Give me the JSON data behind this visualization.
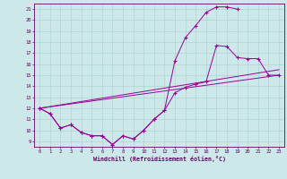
{
  "xlabel": "Windchill (Refroidissement éolien,°C)",
  "bg_color": "#cce8e8",
  "line_color": "#990099",
  "grid_color": "#aacccc",
  "axis_color": "#660066",
  "tick_color": "#660066",
  "xlim": [
    -0.5,
    23.5
  ],
  "ylim": [
    8.5,
    21.5
  ],
  "xticks": [
    0,
    1,
    2,
    3,
    4,
    5,
    6,
    7,
    8,
    9,
    10,
    11,
    12,
    13,
    14,
    15,
    16,
    17,
    18,
    19,
    20,
    21,
    22,
    23
  ],
  "yticks": [
    9,
    10,
    11,
    12,
    13,
    14,
    15,
    16,
    17,
    18,
    19,
    20,
    21
  ],
  "curve1_x": [
    0,
    1,
    2,
    3,
    4,
    5,
    6,
    7,
    8,
    9,
    10,
    11,
    12,
    13,
    14,
    15,
    16,
    17,
    18,
    19
  ],
  "curve1_y": [
    12.0,
    11.5,
    10.2,
    10.5,
    9.8,
    9.5,
    9.5,
    8.7,
    9.5,
    9.2,
    10.0,
    11.0,
    11.8,
    16.3,
    18.4,
    19.5,
    20.7,
    21.2,
    21.2,
    21.0
  ],
  "curve2_x": [
    0,
    1,
    2,
    3,
    4,
    5,
    6,
    7,
    8,
    9,
    10,
    11,
    12,
    13,
    14,
    15,
    16,
    17,
    18,
    19,
    20,
    21,
    22,
    23
  ],
  "curve2_y": [
    12.0,
    11.5,
    10.2,
    10.5,
    9.8,
    9.5,
    9.5,
    8.7,
    9.5,
    9.2,
    10.0,
    11.0,
    11.8,
    13.4,
    13.9,
    14.2,
    14.4,
    17.7,
    17.6,
    16.6,
    16.5,
    16.5,
    15.0,
    15.0
  ],
  "curve3_x": [
    0,
    23
  ],
  "curve3_y": [
    12.0,
    15.0
  ],
  "curve4_x": [
    0,
    23
  ],
  "curve4_y": [
    12.0,
    15.5
  ]
}
